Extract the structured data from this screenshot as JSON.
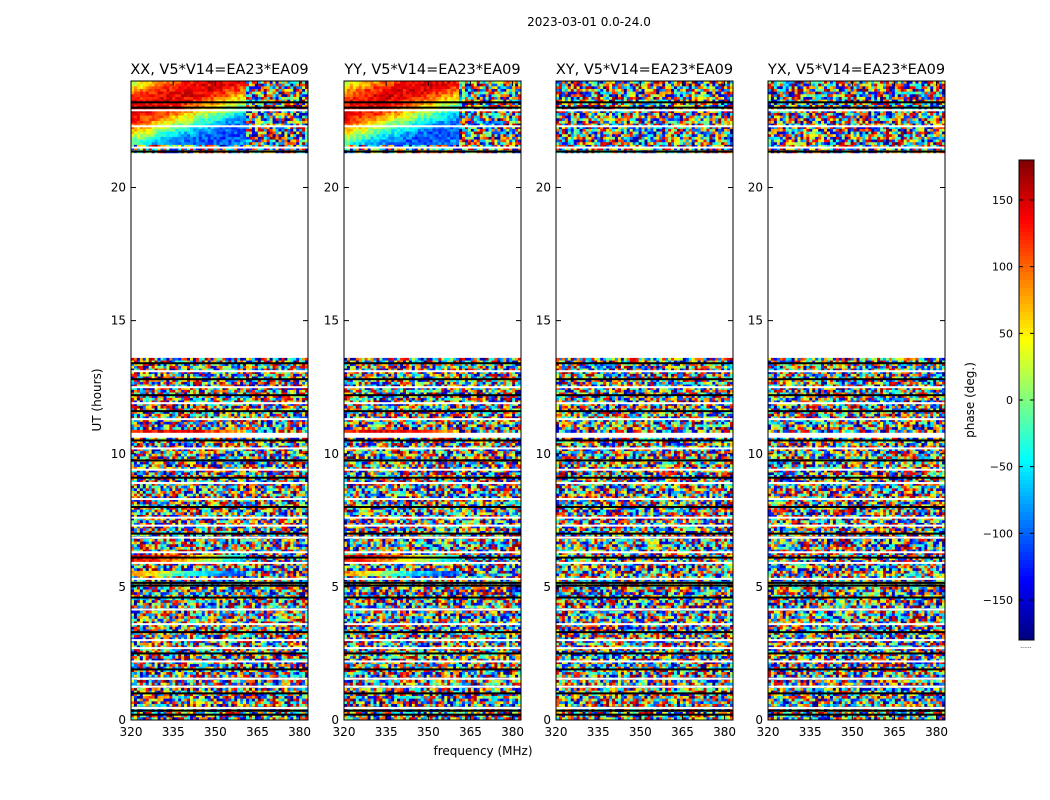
{
  "figure": {
    "suptitle": "2023-03-01 0.0-24.0",
    "xlabel": "frequency (MHz)",
    "ylabel": "UT (hours)",
    "colorbar_label": "phase (deg.)",
    "colorbar_extra": "......"
  },
  "chart_data": {
    "type": "heatmap",
    "x_range": [
      320,
      383
    ],
    "y_range": [
      0,
      24
    ],
    "x_ticks": [
      320,
      335,
      350,
      365,
      380
    ],
    "x_tick_labels": [
      "320",
      "335",
      "350",
      "365",
      "380"
    ],
    "y_ticks": [
      0,
      5,
      10,
      15,
      20
    ],
    "y_tick_labels": [
      "0",
      "5",
      "10",
      "15",
      "20"
    ],
    "colorbar_range": [
      -180,
      180
    ],
    "colorbar_ticks": [
      150,
      100,
      50,
      0,
      -50,
      -100,
      -150
    ],
    "colorbar_tick_labels": [
      "150",
      "100",
      "50",
      "0",
      "−50",
      "−100",
      "−150"
    ],
    "data_gaps_ut": [
      [
        10.6,
        10.8
      ],
      [
        13.6,
        21.3
      ]
    ],
    "panels": [
      {
        "title": "XX, V5*V14=EA23*EA09",
        "coherent": true
      },
      {
        "title": "YY, V5*V14=EA23*EA09",
        "coherent": true
      },
      {
        "title": "XY, V5*V14=EA23*EA09",
        "coherent": false
      },
      {
        "title": "YX, V5*V14=EA23*EA09",
        "coherent": false
      }
    ]
  }
}
